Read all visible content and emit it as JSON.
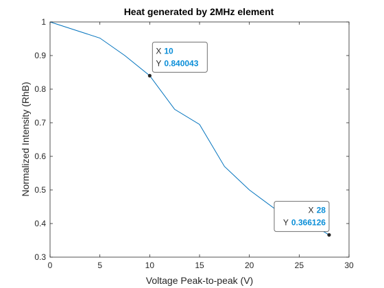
{
  "chart_data": {
    "type": "line",
    "title": "Heat generated by 2MHz element",
    "xlabel": "Voltage Peak-to-peak (V)",
    "ylabel": "Normalized Intensity (RhB)",
    "xlim": [
      0,
      30
    ],
    "ylim": [
      0.3,
      1
    ],
    "xticks": [
      0,
      5,
      10,
      15,
      20,
      25,
      30
    ],
    "yticks": [
      0.3,
      0.4,
      0.5,
      0.6,
      0.7,
      0.8,
      0.9,
      1
    ],
    "xtick_labels": [
      "0",
      "5",
      "10",
      "15",
      "20",
      "25",
      "30"
    ],
    "ytick_labels": [
      "0.3",
      "0.4",
      "0.5",
      "0.6",
      "0.7",
      "0.8",
      "0.9",
      "1"
    ],
    "grid": false,
    "series": [
      {
        "color": "#0072bd",
        "x": [
          0,
          5,
          7.5,
          10,
          12.5,
          15,
          17.5,
          20,
          22.5,
          25,
          28
        ],
        "y": [
          1,
          0.952,
          0.9,
          0.840043,
          0.74,
          0.695,
          0.57,
          0.5,
          0.445,
          0.42,
          0.366126
        ]
      }
    ],
    "datatips": [
      {
        "x_key": "X",
        "x_val": "10",
        "y_key": "Y",
        "y_val": "0.840043",
        "x": 10,
        "y": 0.840043,
        "side": "above-right"
      },
      {
        "x_key": "X",
        "x_val": "28",
        "y_key": "Y",
        "y_val": "0.366126",
        "x": 28,
        "y": 0.366126,
        "side": "above-left"
      }
    ]
  }
}
